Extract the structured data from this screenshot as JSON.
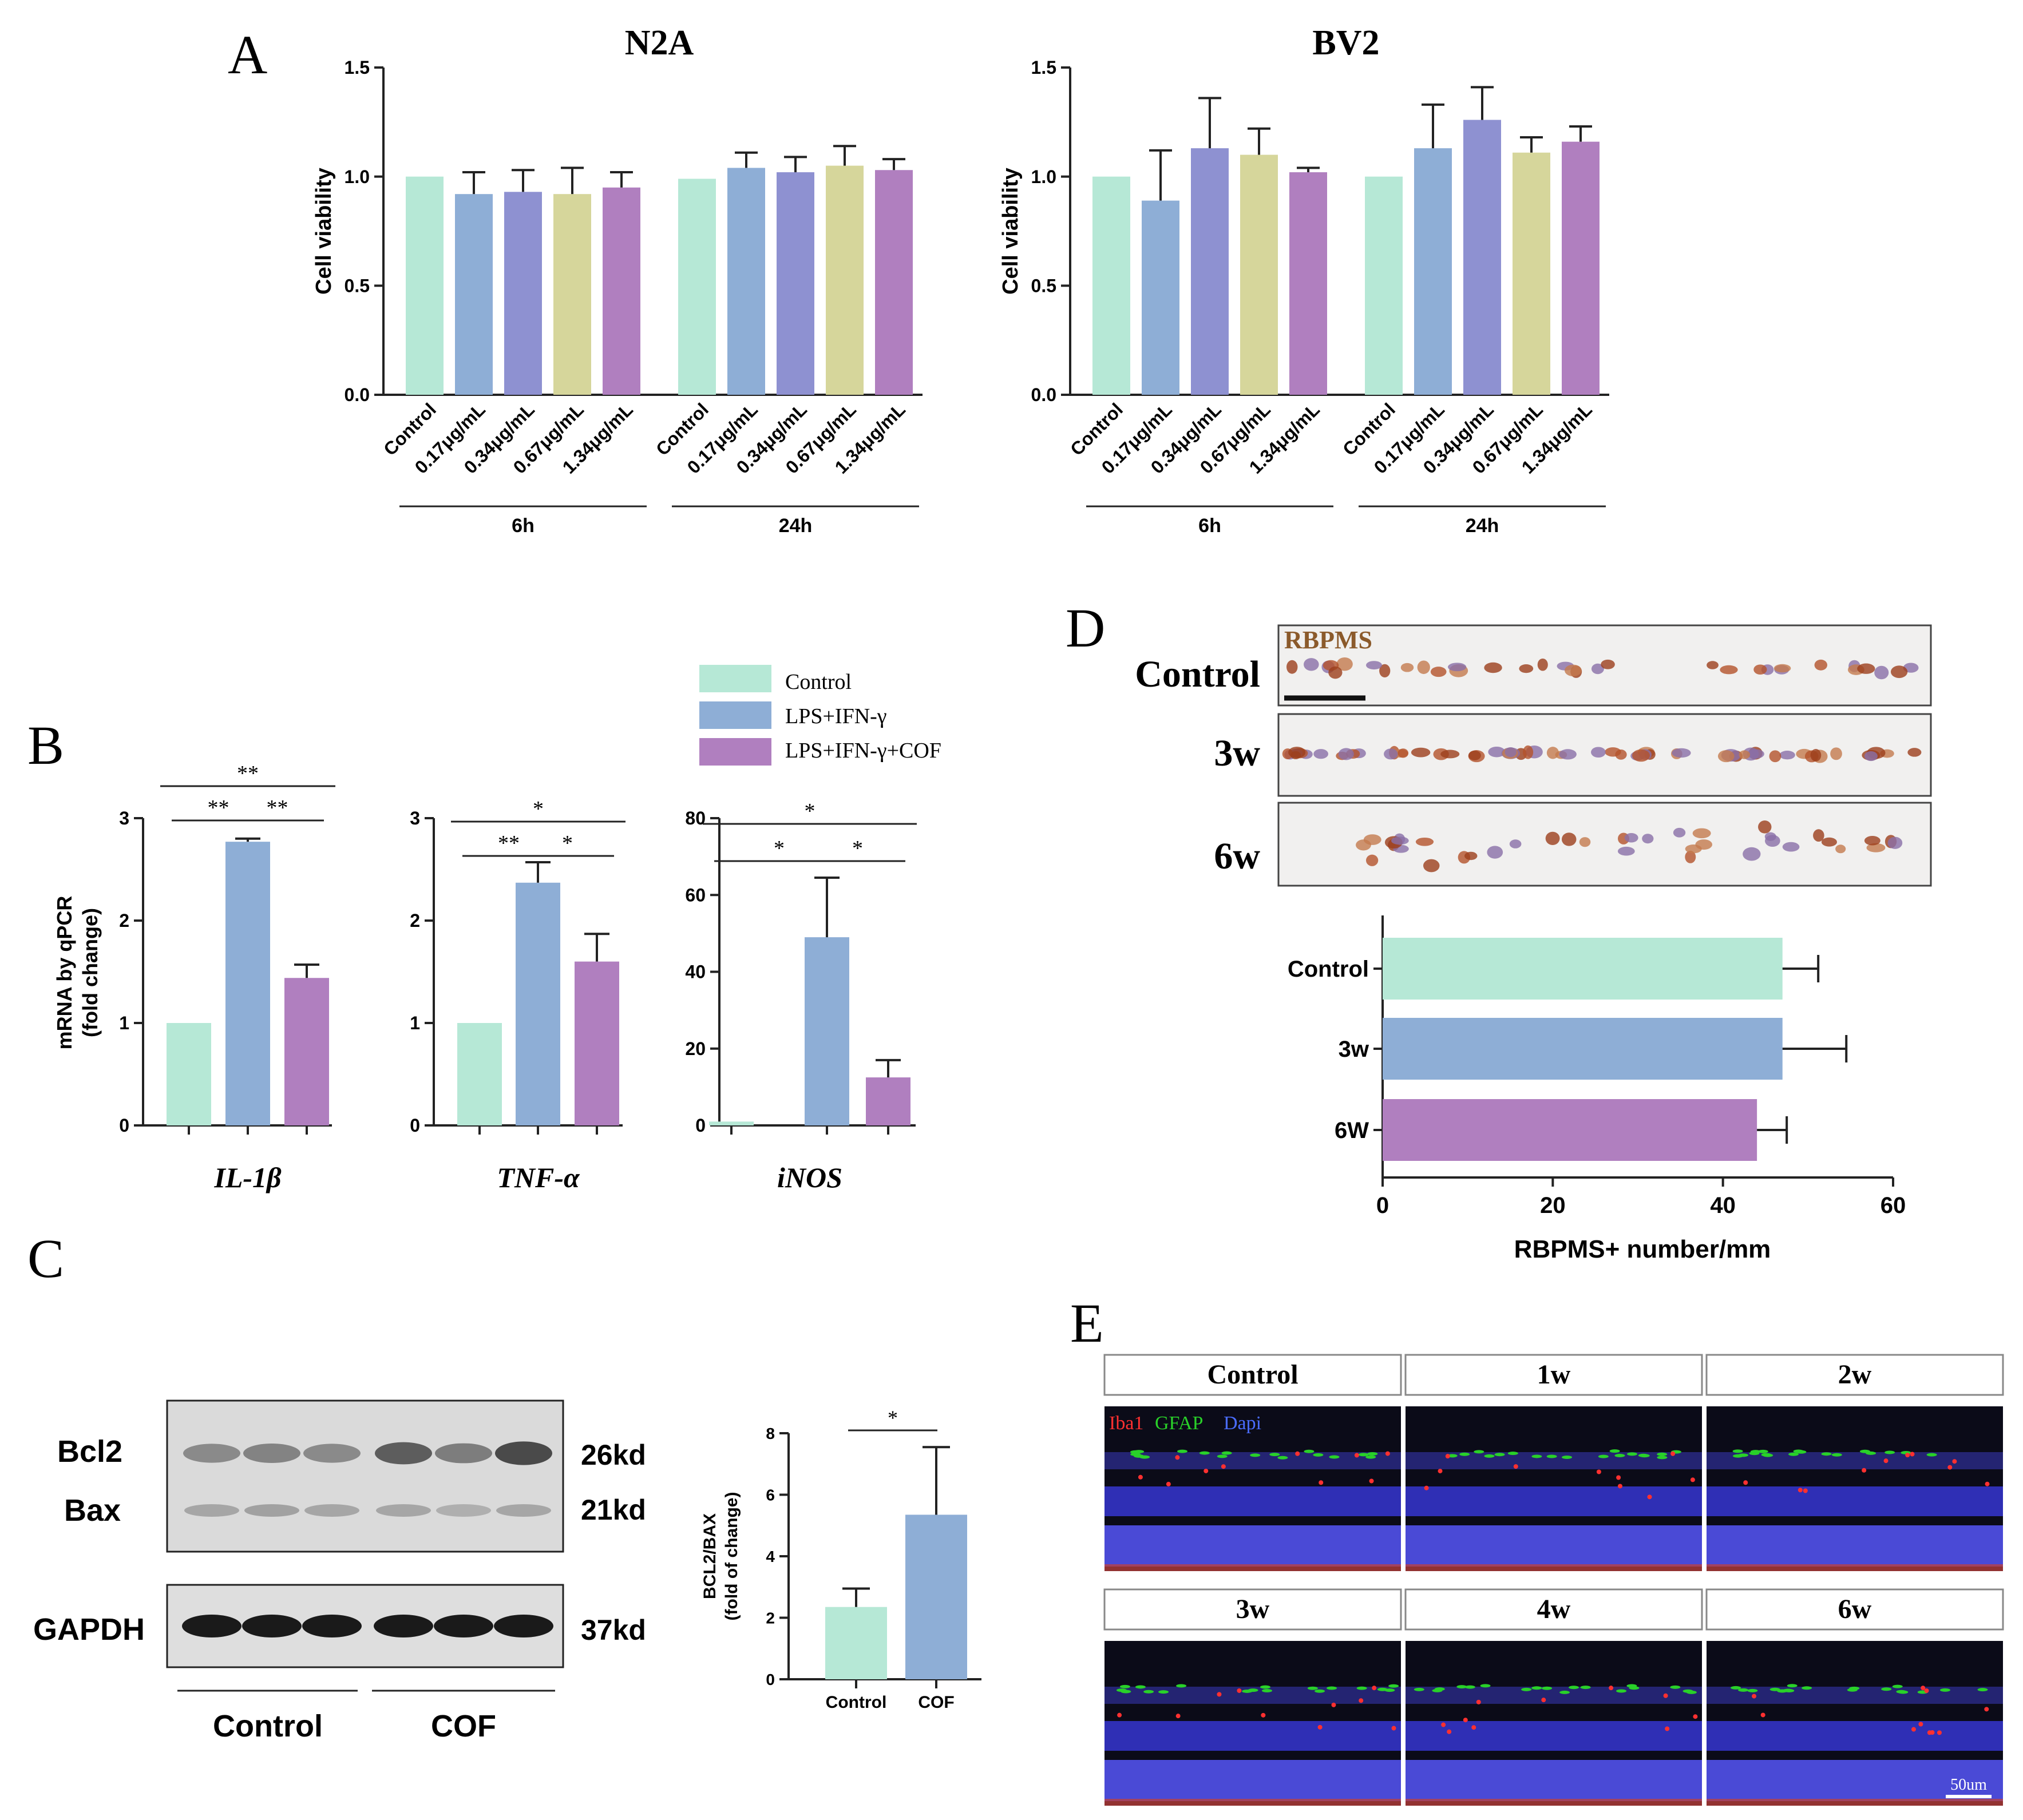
{
  "colors": {
    "control": "#b6e8d6",
    "blue": "#8eaed6",
    "indigo": "#8e91d1",
    "olive": "#d6d69b",
    "purple": "#b07fbf",
    "axis": "#222222",
    "rbpms_label": "#8b5a2b",
    "iba1": "#ff3030",
    "gfap": "#29d129",
    "dapi": "#4a6cff",
    "retina_blue": "#2f2fb5",
    "retina_dark": "#0b0b18"
  },
  "panels": {
    "a": "A",
    "b": "B",
    "c": "C",
    "d": "D",
    "e": "E"
  },
  "chart_data": [
    {
      "id": "n2a",
      "type": "bar",
      "title": "N2A",
      "ylabel": "Cell viability",
      "ylim": [
        0,
        1.5
      ],
      "yticks": [
        "0.0",
        "0.5",
        "1.0",
        "1.5"
      ],
      "categories": [
        "Control",
        "0.17μg/mL",
        "0.34μg/mL",
        "0.67μg/mL",
        "1.34μg/mL",
        "Control",
        "0.17μg/mL",
        "0.34μg/mL",
        "0.67μg/mL",
        "1.34μg/mL"
      ],
      "groups": [
        {
          "label": "6h",
          "start": 0,
          "end": 4
        },
        {
          "label": "24h",
          "start": 5,
          "end": 9
        }
      ],
      "values": [
        1.0,
        0.92,
        0.93,
        0.92,
        0.95,
        0.99,
        1.04,
        1.02,
        1.05,
        1.03
      ],
      "errors": [
        0,
        0.1,
        0.1,
        0.12,
        0.07,
        0,
        0.07,
        0.07,
        0.09,
        0.05
      ],
      "colors": [
        "control",
        "blue",
        "indigo",
        "olive",
        "purple",
        "control",
        "blue",
        "indigo",
        "olive",
        "purple"
      ]
    },
    {
      "id": "bv2",
      "type": "bar",
      "title": "BV2",
      "ylabel": "Cell viability",
      "ylim": [
        0,
        1.5
      ],
      "yticks": [
        "0.0",
        "0.5",
        "1.0",
        "1.5"
      ],
      "categories": [
        "Control",
        "0.17μg/mL",
        "0.34μg/mL",
        "0.67μg/mL",
        "1.34μg/mL",
        "Control",
        "0.17μg/mL",
        "0.34μg/mL",
        "0.67μg/mL",
        "1.34μg/mL"
      ],
      "groups": [
        {
          "label": "6h",
          "start": 0,
          "end": 4
        },
        {
          "label": "24h",
          "start": 5,
          "end": 9
        }
      ],
      "values": [
        1.0,
        0.89,
        1.13,
        1.1,
        1.02,
        1.0,
        1.13,
        1.26,
        1.11,
        1.16
      ],
      "errors": [
        0,
        0.23,
        0.23,
        0.12,
        0.02,
        0,
        0.2,
        0.15,
        0.07,
        0.07
      ],
      "colors": [
        "control",
        "blue",
        "indigo",
        "olive",
        "purple",
        "control",
        "blue",
        "indigo",
        "olive",
        "purple"
      ]
    },
    {
      "id": "il1b",
      "type": "bar",
      "xlabel": "IL-1β",
      "ylabel": "mRNA by qPCR",
      "ylabel2": "(fold change)",
      "ylim": [
        0,
        3
      ],
      "yticks": [
        "0",
        "1",
        "2",
        "3"
      ],
      "categories": [
        "Control",
        "LPS+IFN-γ",
        "LPS+IFN-γ+COF"
      ],
      "values": [
        1.0,
        2.77,
        1.44
      ],
      "errors": [
        0,
        0.03,
        0.13
      ],
      "colors": [
        "control",
        "blue",
        "purple"
      ],
      "significance": [
        {
          "from": 0,
          "to": 1,
          "label": "**",
          "level": 1
        },
        {
          "from": 1,
          "to": 2,
          "label": "**",
          "level": 1
        },
        {
          "from": 0,
          "to": 2,
          "label": "**",
          "level": 2
        }
      ]
    },
    {
      "id": "tnfa",
      "type": "bar",
      "xlabel": "TNF-α",
      "ylim": [
        0,
        3
      ],
      "yticks": [
        "0",
        "1",
        "2",
        "3"
      ],
      "categories": [
        "Control",
        "LPS+IFN-γ",
        "LPS+IFN-γ+COF"
      ],
      "values": [
        1.0,
        2.37,
        1.6
      ],
      "errors": [
        0,
        0.2,
        0.27
      ],
      "colors": [
        "control",
        "blue",
        "purple"
      ],
      "significance": [
        {
          "from": 0,
          "to": 1,
          "label": "**",
          "level": 1
        },
        {
          "from": 1,
          "to": 2,
          "label": "*",
          "level": 1
        },
        {
          "from": 0,
          "to": 2,
          "label": "*",
          "level": 2
        }
      ]
    },
    {
      "id": "inos",
      "type": "bar",
      "xlabel": "iNOS",
      "ylim": [
        0,
        80
      ],
      "yticks": [
        "0",
        "20",
        "40",
        "60",
        "80"
      ],
      "categories": [
        "Control",
        "LPS+IFN-γ",
        "LPS+IFN-γ+COF"
      ],
      "values": [
        1.0,
        49.0,
        12.5
      ],
      "errors": [
        0,
        15.5,
        4.5
      ],
      "colors": [
        "control",
        "blue",
        "purple"
      ],
      "significance": [
        {
          "from": 0,
          "to": 1,
          "label": "*",
          "level": 1
        },
        {
          "from": 1,
          "to": 2,
          "label": "*",
          "level": 1
        },
        {
          "from": 0,
          "to": 2,
          "label": "*",
          "level": 2
        }
      ]
    },
    {
      "id": "bcl2bax",
      "type": "bar",
      "ylabel": "BCL2/BAX",
      "ylabel2": "(fold of change)",
      "ylim": [
        0,
        8
      ],
      "yticks": [
        "0",
        "2",
        "4",
        "6",
        "8"
      ],
      "categories": [
        "Control",
        "COF"
      ],
      "values": [
        2.35,
        5.35
      ],
      "errors": [
        0.6,
        2.2
      ],
      "colors": [
        "control",
        "blue"
      ],
      "significance": [
        {
          "from": 0,
          "to": 1,
          "label": "*",
          "level": 1
        }
      ]
    },
    {
      "id": "rbpms",
      "type": "bar",
      "orientation": "horizontal",
      "xlabel": "RBPMS+ number/mm",
      "xlim": [
        0,
        60
      ],
      "xticks": [
        "0",
        "20",
        "40",
        "60"
      ],
      "categories": [
        "Control",
        "3w",
        "6W"
      ],
      "values": [
        47.0,
        47.0,
        44.0
      ],
      "errors": [
        4.2,
        7.5,
        3.5
      ],
      "colors": [
        "control",
        "blue",
        "purple"
      ]
    }
  ],
  "legend_b": {
    "items": [
      {
        "label": "Control",
        "color": "control"
      },
      {
        "label": "LPS+IFN-γ",
        "color": "blue"
      },
      {
        "label": "LPS+IFN-γ+COF",
        "color": "purple"
      }
    ]
  },
  "blot": {
    "rows": [
      "Bcl2",
      "Bax",
      "GAPDH"
    ],
    "sizes": [
      "26kd",
      "21kd",
      "37kd"
    ],
    "groups": [
      "Control",
      "COF"
    ],
    "bcl2_intensity": [
      0.45,
      0.5,
      0.45,
      0.8,
      0.55,
      0.95
    ],
    "bax_intensity": [
      0.4,
      0.45,
      0.4,
      0.4,
      0.3,
      0.4
    ]
  },
  "rbpms_images": {
    "stain_label": "RBPMS",
    "rows": [
      "Control",
      "3w",
      "6w"
    ]
  },
  "fluor": {
    "stain_labels": [
      "Iba1",
      "GFAP",
      "Dapi"
    ],
    "panels": [
      "Control",
      "1w",
      "2w",
      "3w",
      "4w",
      "6w"
    ],
    "scale_bar": "50um"
  }
}
